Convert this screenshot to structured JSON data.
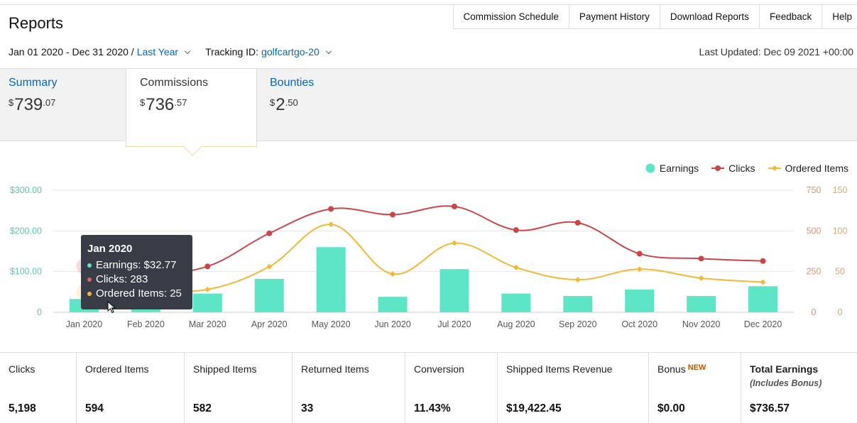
{
  "header": {
    "title": "Reports",
    "nav": [
      "Commission Schedule",
      "Payment History",
      "Download Reports",
      "Feedback",
      "Help"
    ]
  },
  "filters": {
    "date_range": "Jan 01 2020 - Dec 31 2020 /",
    "period": "Last Year",
    "tracking_label": "Tracking ID:",
    "tracking_id": "golfcartgo-20",
    "last_updated": "Last Updated: Dec 09 2021 +00:00"
  },
  "tabs": [
    {
      "label": "Summary",
      "whole": "739",
      "cents": "07",
      "currency": "$"
    },
    {
      "label": "Commissions",
      "whole": "736",
      "cents": "57",
      "currency": "$"
    },
    {
      "label": "Bounties",
      "whole": "2",
      "cents": "50",
      "currency": "$"
    }
  ],
  "legend": [
    "Earnings",
    "Clicks",
    "Ordered Items"
  ],
  "tooltip": {
    "title": "Jan 2020",
    "earnings": "Earnings: $32.77",
    "clicks": "Clicks: 283",
    "ordered": "Ordered Items: 25"
  },
  "chart_data": {
    "type": "bar",
    "categories": [
      "Jan 2020",
      "Feb 2020",
      "Mar 2020",
      "Apr 2020",
      "May 2020",
      "Jun 2020",
      "Jul 2020",
      "Aug 2020",
      "Sep 2020",
      "Oct 2020",
      "Nov 2020",
      "Dec 2020"
    ],
    "series": [
      {
        "name": "Earnings",
        "type": "bar",
        "axis": "left",
        "values": [
          32.77,
          12,
          46,
          82,
          160,
          38,
          106,
          46,
          40,
          56,
          40,
          64
        ]
      },
      {
        "name": "Clicks",
        "type": "line",
        "axis": "right-1",
        "values": [
          283,
          240,
          282,
          485,
          635,
          600,
          650,
          505,
          550,
          360,
          330,
          315
        ]
      },
      {
        "name": "Ordered Items",
        "type": "line",
        "axis": "right-2",
        "values": [
          25,
          28,
          28,
          56,
          108,
          47,
          85,
          55,
          40,
          53,
          42,
          37
        ]
      }
    ],
    "y_left": {
      "ticks": [
        "0",
        "$100.00",
        "$200.00",
        "$300.00"
      ],
      "max": 300
    },
    "y_right1": {
      "ticks": [
        "0",
        "250",
        "500",
        "750"
      ],
      "max": 750
    },
    "y_right2": {
      "ticks": [
        "0",
        "50",
        "100",
        "150"
      ],
      "max": 150
    },
    "colors": {
      "earnings": "#5ee5c6",
      "clicks": "#c9464b",
      "ordered": "#f0b937"
    }
  },
  "stats": [
    {
      "label": "Clicks",
      "value": "5,198"
    },
    {
      "label": "Ordered Items",
      "value": "594"
    },
    {
      "label": "Shipped Items",
      "value": "582"
    },
    {
      "label": "Returned Items",
      "value": "33"
    },
    {
      "label": "Conversion",
      "value": "11.43%"
    },
    {
      "label": "Shipped Items Revenue",
      "value": "$19,422.45"
    },
    {
      "label": "Bonus",
      "badge": "NEW",
      "value": "$0.00"
    },
    {
      "label": "Total Earnings",
      "sub": "(Includes Bonus)",
      "value": "$736.57"
    }
  ]
}
